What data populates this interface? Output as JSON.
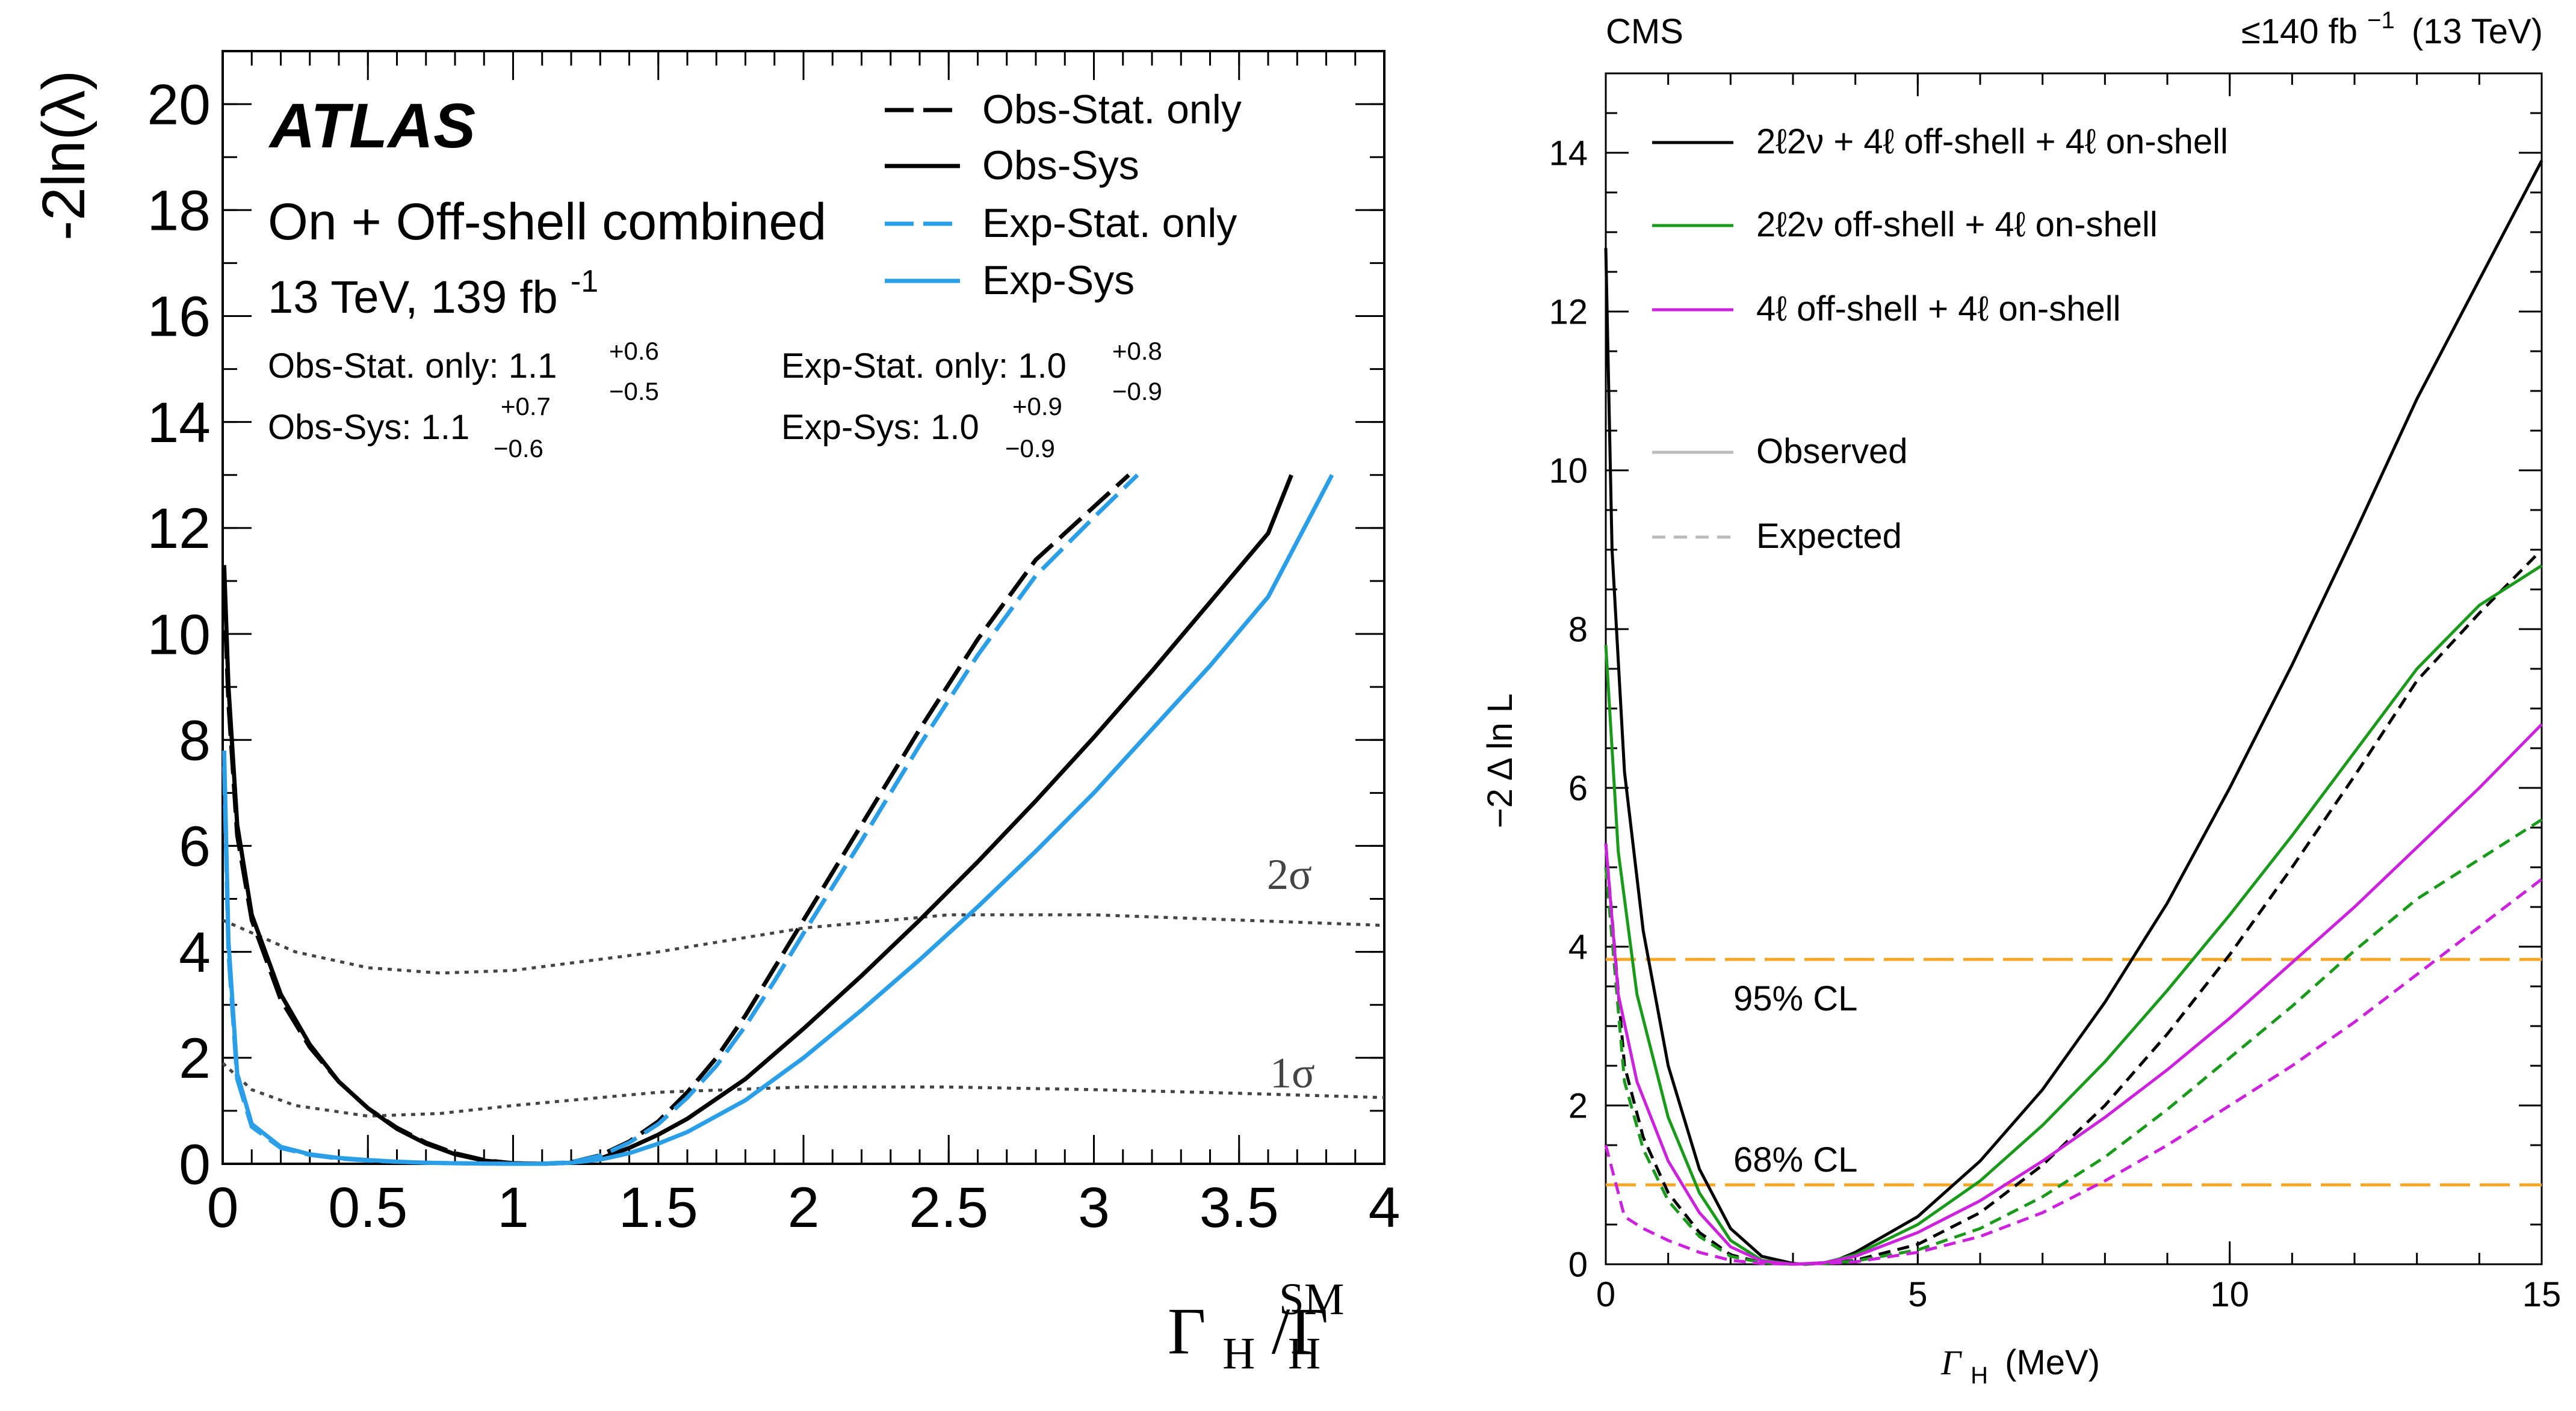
{
  "chart_data": [
    {
      "type": "line",
      "experiment": "ATLAS",
      "title": "On + Off-shell combined",
      "subtitle": "13 TeV, 139 fb",
      "subtitle_sup": "-1",
      "xlabel_main": "Γ",
      "xlabel_sub1": "H",
      "xlabel_slash": "/Γ",
      "xlabel_sub2": "H",
      "xlabel_sup": "SM",
      "ylabel": "-2ln(λ)",
      "xlim": [
        0,
        4
      ],
      "ylim": [
        0,
        21
      ],
      "xticks": [
        "0",
        "0.5",
        "1",
        "1.5",
        "2",
        "2.5",
        "3",
        "3.5",
        "4"
      ],
      "yticks": [
        "0",
        "2",
        "4",
        "6",
        "8",
        "10",
        "12",
        "14",
        "16",
        "18",
        "20"
      ],
      "results": [
        {
          "label": "Obs-Stat. only: 1.1",
          "up": "+0.6",
          "down": "−0.5"
        },
        {
          "label": "Obs-Sys: 1.1",
          "up": "+0.7",
          "down": "−0.6"
        },
        {
          "label": "Exp-Stat. only: 1.0",
          "up": "+0.8",
          "down": "−0.9"
        },
        {
          "label": "Exp-Sys: 1.0",
          "up": "+0.9",
          "down": "−0.9"
        }
      ],
      "legend": [
        "Obs-Stat. only",
        "Obs-Sys",
        "Exp-Stat. only",
        "Exp-Sys"
      ],
      "series": [
        {
          "name": "Obs-Stat. only",
          "color": "#000000",
          "style": "dashed",
          "x": [
            0.005,
            0.02,
            0.05,
            0.1,
            0.2,
            0.3,
            0.4,
            0.5,
            0.6,
            0.7,
            0.8,
            0.9,
            1.0,
            1.1,
            1.2,
            1.3,
            1.4,
            1.5,
            1.6,
            1.7,
            1.8,
            1.9,
            2.0,
            2.2,
            2.4,
            2.6,
            2.8,
            3.0,
            3.12
          ],
          "y": [
            10.8,
            8.7,
            6.2,
            4.6,
            3.1,
            2.2,
            1.55,
            1.05,
            0.68,
            0.4,
            0.2,
            0.07,
            0.01,
            0.0,
            0.03,
            0.16,
            0.42,
            0.8,
            1.35,
            2.0,
            2.8,
            3.7,
            4.6,
            6.4,
            8.2,
            9.9,
            11.4,
            12.4,
            13.0
          ]
        },
        {
          "name": "Obs-Sys",
          "color": "#000000",
          "style": "solid",
          "x": [
            0.005,
            0.02,
            0.05,
            0.1,
            0.2,
            0.3,
            0.4,
            0.5,
            0.6,
            0.7,
            0.8,
            0.9,
            1.0,
            1.1,
            1.2,
            1.3,
            1.4,
            1.5,
            1.6,
            1.8,
            2.0,
            2.2,
            2.4,
            2.6,
            2.8,
            3.0,
            3.2,
            3.4,
            3.6,
            3.68
          ],
          "y": [
            11.3,
            9.0,
            6.4,
            4.7,
            3.2,
            2.25,
            1.55,
            1.05,
            0.66,
            0.38,
            0.18,
            0.06,
            0.01,
            0.0,
            0.02,
            0.1,
            0.3,
            0.55,
            0.85,
            1.6,
            2.55,
            3.55,
            4.6,
            5.7,
            6.85,
            8.05,
            9.3,
            10.6,
            11.9,
            13.0
          ]
        },
        {
          "name": "Exp-Stat. only",
          "color": "#2a9fe8",
          "style": "dashed",
          "x": [
            0.005,
            0.02,
            0.05,
            0.1,
            0.2,
            0.3,
            0.4,
            0.5,
            0.6,
            0.7,
            0.8,
            0.9,
            1.0,
            1.1,
            1.2,
            1.3,
            1.4,
            1.5,
            1.6,
            1.7,
            1.8,
            1.9,
            2.0,
            2.2,
            2.4,
            2.6,
            2.8,
            3.0,
            3.15
          ],
          "y": [
            7.5,
            4.0,
            1.6,
            0.7,
            0.3,
            0.17,
            0.1,
            0.06,
            0.04,
            0.02,
            0.01,
            0.005,
            0.0,
            0.0,
            0.03,
            0.15,
            0.4,
            0.75,
            1.25,
            1.85,
            2.6,
            3.45,
            4.35,
            6.1,
            7.9,
            9.6,
            11.1,
            12.2,
            13.0
          ]
        },
        {
          "name": "Exp-Sys",
          "color": "#2a9fe8",
          "style": "solid",
          "x": [
            0.005,
            0.02,
            0.05,
            0.1,
            0.2,
            0.3,
            0.4,
            0.5,
            0.6,
            0.7,
            0.8,
            0.9,
            1.0,
            1.1,
            1.2,
            1.3,
            1.4,
            1.5,
            1.6,
            1.8,
            2.0,
            2.2,
            2.4,
            2.6,
            2.8,
            3.0,
            3.2,
            3.4,
            3.6,
            3.82
          ],
          "y": [
            7.8,
            4.2,
            1.7,
            0.75,
            0.32,
            0.18,
            0.11,
            0.07,
            0.04,
            0.02,
            0.01,
            0.005,
            0.0,
            0.0,
            0.02,
            0.08,
            0.2,
            0.38,
            0.6,
            1.2,
            2.0,
            2.9,
            3.85,
            4.85,
            5.9,
            7.0,
            8.2,
            9.4,
            10.7,
            13.0
          ]
        }
      ],
      "sigma_lines": [
        {
          "label": "2σ",
          "x": [
            0,
            0.25,
            0.5,
            0.75,
            1.0,
            1.5,
            2.0,
            2.5,
            3.0,
            3.5,
            4.0
          ],
          "y": [
            4.6,
            4.0,
            3.7,
            3.6,
            3.65,
            4.0,
            4.45,
            4.7,
            4.7,
            4.6,
            4.5
          ]
        },
        {
          "label": "1σ",
          "x": [
            0,
            0.1,
            0.25,
            0.5,
            0.75,
            1.0,
            1.5,
            2.0,
            2.5,
            3.0,
            3.5,
            4.0
          ],
          "y": [
            1.9,
            1.4,
            1.1,
            0.9,
            0.95,
            1.1,
            1.35,
            1.45,
            1.45,
            1.4,
            1.33,
            1.25
          ]
        }
      ]
    },
    {
      "type": "line",
      "experiment": "CMS",
      "lumi_label": "≤140 fb",
      "lumi_sup": "−1",
      "lumi_energy": "(13 TeV)",
      "xlabel": "Γ",
      "xlabel_sub": "H",
      "xlabel_unit": "(MeV)",
      "ylabel": "−2 Δ ln L",
      "xlim": [
        0,
        15
      ],
      "ylim": [
        0,
        15
      ],
      "xticks": [
        "0",
        "5",
        "10",
        "15"
      ],
      "yticks": [
        "0",
        "2",
        "4",
        "6",
        "8",
        "10",
        "12",
        "14"
      ],
      "legend": [
        {
          "label": "2ℓ2ν + 4ℓ off-shell + 4ℓ on-shell",
          "color": "#000000"
        },
        {
          "label": "2ℓ2ν off-shell + 4ℓ on-shell",
          "color": "#1a9a1a"
        },
        {
          "label": "4ℓ off-shell + 4ℓ on-shell",
          "color": "#cc22dd"
        },
        {
          "label": "Observed",
          "color": "#bbbbbb",
          "style": "solid"
        },
        {
          "label": "Expected",
          "color": "#bbbbbb",
          "style": "dashed"
        }
      ],
      "cl_lines": [
        {
          "label": "95% CL",
          "y": 3.84
        },
        {
          "label": "68% CL",
          "y": 1.0
        }
      ],
      "series": [
        {
          "name": "2ℓ2ν + 4ℓ off-shell + 4ℓ on-shell observed",
          "color": "#000000",
          "style": "solid",
          "x": [
            0,
            0.1,
            0.3,
            0.6,
            1.0,
            1.5,
            2.0,
            2.5,
            3.0,
            3.2,
            3.6,
            4.0,
            5.0,
            6.0,
            7.0,
            8.0,
            9.0,
            10.0,
            11.0,
            12.0,
            13.0,
            14.0,
            15.0
          ],
          "y": [
            12.8,
            9.0,
            6.2,
            4.2,
            2.5,
            1.2,
            0.45,
            0.1,
            0.01,
            0.0,
            0.02,
            0.15,
            0.6,
            1.3,
            2.2,
            3.3,
            4.55,
            6.0,
            7.55,
            9.2,
            10.9,
            12.4,
            13.9
          ]
        },
        {
          "name": "2ℓ2ν + 4ℓ off-shell + 4ℓ on-shell expected",
          "color": "#000000",
          "style": "dashed",
          "x": [
            0,
            0.3,
            0.6,
            1.0,
            1.5,
            2.0,
            2.5,
            3.0,
            3.5,
            4.0,
            5.0,
            6.0,
            7.0,
            8.0,
            9.0,
            10.0,
            11.0,
            12.0,
            13.0,
            14.0,
            15.0
          ],
          "y": [
            5.3,
            2.5,
            1.6,
            0.9,
            0.4,
            0.12,
            0.02,
            0.0,
            0.01,
            0.05,
            0.25,
            0.65,
            1.25,
            2.0,
            2.9,
            3.9,
            5.0,
            6.15,
            7.35,
            8.2,
            9.0
          ]
        },
        {
          "name": "2ℓ2ν off-shell + 4ℓ on-shell observed",
          "color": "#1a9a1a",
          "style": "solid",
          "x": [
            0,
            0.2,
            0.5,
            1.0,
            1.5,
            2.0,
            2.5,
            3.0,
            3.5,
            4.0,
            5.0,
            6.0,
            7.0,
            8.0,
            9.0,
            10.0,
            11.0,
            12.0,
            13.0,
            14.0,
            15.0
          ],
          "y": [
            7.8,
            5.2,
            3.4,
            1.85,
            0.9,
            0.3,
            0.05,
            0.0,
            0.02,
            0.12,
            0.5,
            1.05,
            1.75,
            2.55,
            3.45,
            4.4,
            5.4,
            6.45,
            7.5,
            8.3,
            8.8
          ]
        },
        {
          "name": "2ℓ2ν off-shell + 4ℓ on-shell expected",
          "color": "#1a9a1a",
          "style": "dashed",
          "x": [
            0,
            0.3,
            0.6,
            1.0,
            1.5,
            2.0,
            2.5,
            3.0,
            3.5,
            4.0,
            5.0,
            6.0,
            7.0,
            8.0,
            9.0,
            10.0,
            11.0,
            12.0,
            13.0,
            14.0,
            15.0
          ],
          "y": [
            5.0,
            2.3,
            1.45,
            0.8,
            0.35,
            0.1,
            0.02,
            0.0,
            0.01,
            0.04,
            0.18,
            0.45,
            0.85,
            1.35,
            1.95,
            2.6,
            3.25,
            3.95,
            4.6,
            5.1,
            5.6
          ]
        },
        {
          "name": "4ℓ off-shell + 4ℓ on-shell observed",
          "color": "#cc22dd",
          "style": "solid",
          "x": [
            0,
            0.2,
            0.5,
            1.0,
            1.5,
            2.0,
            2.5,
            3.0,
            3.5,
            4.0,
            5.0,
            6.0,
            7.0,
            8.0,
            9.0,
            10.0,
            11.0,
            12.0,
            13.0,
            14.0,
            15.0
          ],
          "y": [
            5.3,
            3.4,
            2.3,
            1.3,
            0.65,
            0.22,
            0.04,
            0.0,
            0.02,
            0.1,
            0.4,
            0.8,
            1.3,
            1.85,
            2.45,
            3.1,
            3.8,
            4.5,
            5.25,
            6.0,
            6.8
          ]
        },
        {
          "name": "4ℓ off-shell + 4ℓ on-shell expected",
          "color": "#cc22dd",
          "style": "dashed",
          "x": [
            0,
            0.3,
            0.6,
            1.0,
            1.5,
            2.0,
            2.5,
            3.0,
            3.5,
            4.0,
            5.0,
            6.0,
            7.0,
            8.0,
            9.0,
            10.0,
            11.0,
            12.0,
            13.0,
            14.0,
            15.0
          ],
          "y": [
            1.5,
            0.6,
            0.45,
            0.3,
            0.15,
            0.05,
            0.01,
            0.0,
            0.01,
            0.03,
            0.15,
            0.35,
            0.65,
            1.05,
            1.5,
            2.0,
            2.5,
            3.05,
            3.65,
            4.25,
            4.85
          ]
        }
      ]
    }
  ]
}
